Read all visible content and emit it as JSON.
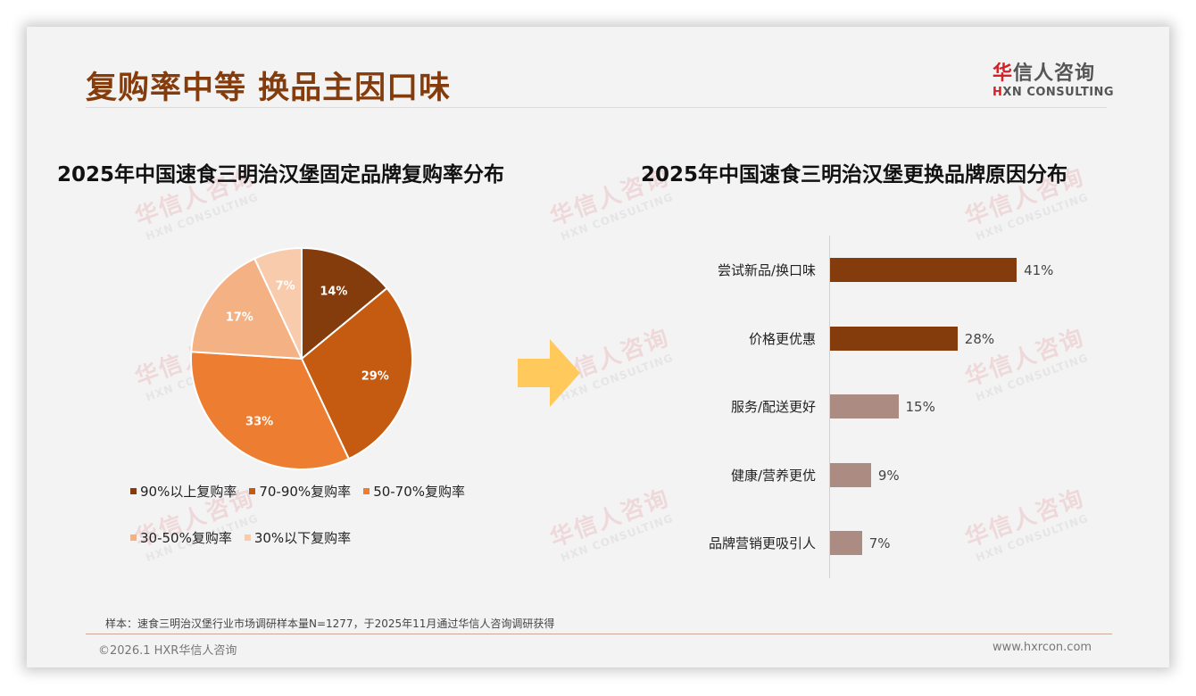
{
  "header": {
    "title": "复购率中等 换品主因口味",
    "logo_cn_first": "华",
    "logo_cn_rest": "信人咨询",
    "logo_en_first": "H",
    "logo_en_rest": "XN CONSULTING"
  },
  "colors": {
    "title": "#843c0c",
    "pie": [
      "#843c0c",
      "#c55a11",
      "#ed7d31",
      "#f4b183",
      "#f8cbad"
    ],
    "bar_dark": "#843c0c",
    "bar_light": "#ab8b82",
    "arrow": "#ffc95c"
  },
  "watermark": {
    "cn": "华信人咨询",
    "en": "HXN CONSULTING"
  },
  "chart_data": [
    {
      "type": "pie",
      "title": "2025年中国速食三明治汉堡固定品牌复购率分布",
      "categories": [
        "90%以上复购率",
        "70-90%复购率",
        "50-70%复购率",
        "30-50%复购率",
        "30%以下复购率"
      ],
      "values": [
        14,
        29,
        33,
        17,
        7
      ],
      "labels": [
        "14%",
        "29%",
        "33%",
        "17%",
        "7%"
      ],
      "legend_position": "bottom"
    },
    {
      "type": "bar",
      "orientation": "horizontal",
      "title": "2025年中国速食三明治汉堡更换品牌原因分布",
      "categories": [
        "尝试新品/换口味",
        "价格更优惠",
        "服务/配送更好",
        "健康/营养更优",
        "品牌营销更吸引人"
      ],
      "values": [
        41,
        28,
        15,
        9,
        7
      ],
      "labels": [
        "41%",
        "28%",
        "15%",
        "9%",
        "7%"
      ],
      "xlim": [
        0,
        50
      ],
      "grid": false
    }
  ],
  "footer": {
    "note": "样本：速食三明治汉堡行业市场调研样本量N=1277，于2025年11月通过华信人咨询调研获得",
    "copyright": "©2026.1 HXR华信人咨询",
    "website": "www.hxrcon.com"
  }
}
